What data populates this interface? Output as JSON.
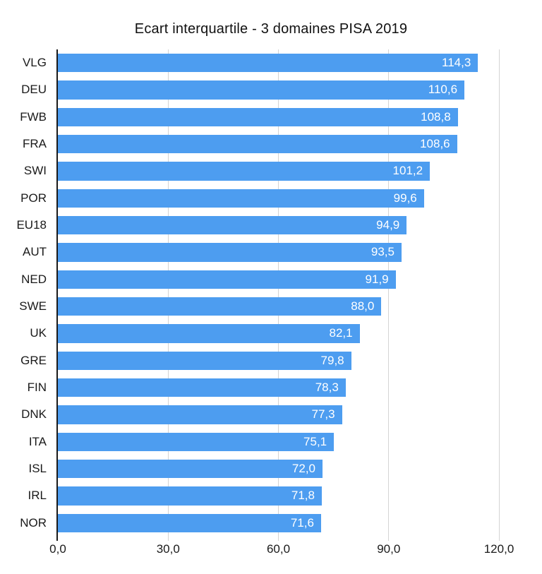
{
  "title": "Ecart interquartile - 3 domaines PISA 2019",
  "chart_data": {
    "type": "bar",
    "orientation": "horizontal",
    "title": "Ecart interquartile - 3 domaines PISA 2019",
    "categories": [
      "VLG",
      "DEU",
      "FWB",
      "FRA",
      "SWI",
      "POR",
      "EU18",
      "AUT",
      "NED",
      "SWE",
      "UK",
      "GRE",
      "FIN",
      "DNK",
      "ITA",
      "ISL",
      "IRL",
      "NOR"
    ],
    "values": [
      114.3,
      110.6,
      108.8,
      108.6,
      101.2,
      99.6,
      94.9,
      93.5,
      91.9,
      88.0,
      82.1,
      79.8,
      78.3,
      77.3,
      75.1,
      72.0,
      71.8,
      71.6
    ],
    "value_labels": [
      "114,3",
      "110,6",
      "108,8",
      "108,6",
      "101,2",
      "99,6",
      "94,9",
      "93,5",
      "91,9",
      "88,0",
      "82,1",
      "79,8",
      "78,3",
      "77,3",
      "75,1",
      "72,0",
      "71,8",
      "71,6"
    ],
    "xlabel": "",
    "ylabel": "",
    "xlim": [
      0,
      120
    ],
    "x_ticks": [
      {
        "value": 0,
        "label": "0,0"
      },
      {
        "value": 30,
        "label": "30,0"
      },
      {
        "value": 60,
        "label": "60,0"
      },
      {
        "value": 90,
        "label": "90,0"
      },
      {
        "value": 120,
        "label": "120,0"
      }
    ],
    "grid": true,
    "legend_position": "none",
    "colors": {
      "bar": "#4d9df0",
      "value_label": "#ffffff",
      "gridline": "#d4d4d4",
      "axis": "#1a1a1a",
      "text": "#1a1a1a",
      "background": "#ffffff"
    }
  }
}
